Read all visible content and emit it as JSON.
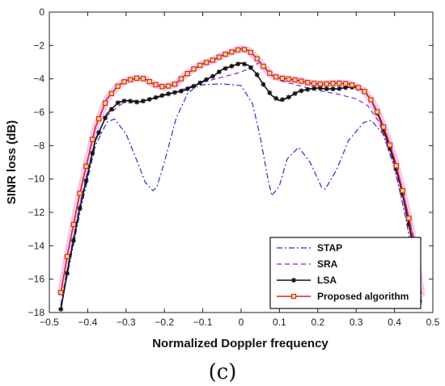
{
  "caption": "(c)",
  "chart_data": {
    "type": "line",
    "xlabel": "Normalized Doppler frequency",
    "ylabel": "SINR loss (dB)",
    "xlim": [
      -0.5,
      0.5
    ],
    "ylim": [
      -18,
      0
    ],
    "xticks": [
      -0.5,
      -0.4,
      -0.3,
      -0.2,
      -0.1,
      0,
      0.1,
      0.2,
      0.3,
      0.4,
      0.5
    ],
    "xtick_labels": [
      "−0.5",
      "−0.4",
      "−0.3",
      "−0.2",
      "−0.1",
      "0",
      "0.1",
      "0.2",
      "0.3",
      "0.4",
      "0.5"
    ],
    "yticks": [
      -18,
      -16,
      -14,
      -12,
      -10,
      -8,
      -6,
      -4,
      -2,
      0
    ],
    "ytick_labels": [
      "−18",
      "−16",
      "−14",
      "−12",
      "−10",
      "−8",
      "−6",
      "−4",
      "−2",
      "0"
    ],
    "grid": false,
    "legend_position": "bottom-right",
    "series": [
      {
        "name": "STAP",
        "color": "#2233cc",
        "style": "dashdot",
        "marker": "none",
        "x": [
          -0.47,
          -0.45,
          -0.42,
          -0.38,
          -0.35,
          -0.33,
          -0.3,
          -0.27,
          -0.25,
          -0.23,
          -0.22,
          -0.2,
          -0.17,
          -0.14,
          -0.12,
          -0.1,
          -0.05,
          0.0,
          0.03,
          0.05,
          0.07,
          0.08,
          0.1,
          0.12,
          0.15,
          0.18,
          0.21,
          0.22,
          0.25,
          0.28,
          0.32,
          0.34,
          0.37,
          0.4,
          0.43,
          0.45,
          0.47
        ],
        "y": [
          -17.6,
          -15.4,
          -12.0,
          -8.0,
          -6.6,
          -6.4,
          -7.3,
          -9.0,
          -10.2,
          -10.7,
          -10.5,
          -9.0,
          -6.4,
          -4.9,
          -4.5,
          -4.35,
          -4.3,
          -4.4,
          -5.5,
          -7.5,
          -10.0,
          -11.0,
          -10.4,
          -8.8,
          -8.1,
          -9.0,
          -10.5,
          -10.6,
          -9.4,
          -7.7,
          -6.6,
          -6.5,
          -7.3,
          -9.3,
          -12.4,
          -15.0,
          -17.5
        ]
      },
      {
        "name": "SRA",
        "color": "#8822cc",
        "style": "dashed",
        "marker": "none",
        "x": [
          -0.47,
          -0.45,
          -0.42,
          -0.38,
          -0.35,
          -0.3,
          -0.25,
          -0.2,
          -0.15,
          -0.1,
          -0.05,
          0.0,
          0.05,
          0.1,
          0.15,
          0.2,
          0.25,
          0.3,
          0.33,
          0.36,
          0.39,
          0.42,
          0.45,
          0.47
        ],
        "y": [
          -17.5,
          -15.0,
          -11.5,
          -7.6,
          -6.2,
          -5.3,
          -5.3,
          -5.0,
          -4.6,
          -4.2,
          -3.9,
          -3.6,
          -3.0,
          -4.1,
          -4.4,
          -4.7,
          -4.9,
          -5.2,
          -5.6,
          -6.6,
          -8.4,
          -10.8,
          -13.5,
          -16.0
        ]
      },
      {
        "name": "LSA",
        "color": "#111111",
        "style": "solid",
        "marker": "star",
        "x": [
          -0.47,
          -0.45,
          -0.42,
          -0.38,
          -0.35,
          -0.32,
          -0.3,
          -0.27,
          -0.25,
          -0.22,
          -0.2,
          -0.17,
          -0.15,
          -0.12,
          -0.1,
          -0.07,
          -0.05,
          -0.02,
          0.0,
          0.02,
          0.04,
          0.06,
          0.08,
          0.1,
          0.12,
          0.15,
          0.18,
          0.2,
          0.22,
          0.25,
          0.28,
          0.3,
          0.32,
          0.34,
          0.36,
          0.38,
          0.4,
          0.42,
          0.44,
          0.46,
          0.47
        ],
        "y": [
          -17.8,
          -15.2,
          -11.7,
          -7.7,
          -6.1,
          -5.4,
          -5.3,
          -5.4,
          -5.3,
          -5.1,
          -4.95,
          -4.8,
          -4.7,
          -4.4,
          -4.15,
          -3.8,
          -3.45,
          -3.2,
          -3.05,
          -3.2,
          -3.7,
          -4.4,
          -5.0,
          -5.3,
          -5.15,
          -4.75,
          -4.6,
          -4.55,
          -4.6,
          -4.6,
          -4.5,
          -4.5,
          -4.7,
          -5.3,
          -6.3,
          -7.6,
          -9.0,
          -10.8,
          -13.0,
          -15.6,
          -17.4
        ]
      },
      {
        "name": "Proposed algorithm",
        "color": "#cc2a1a",
        "style": "solid",
        "marker": "square",
        "x": [
          -0.47,
          -0.45,
          -0.42,
          -0.38,
          -0.35,
          -0.32,
          -0.3,
          -0.27,
          -0.25,
          -0.23,
          -0.2,
          -0.17,
          -0.15,
          -0.12,
          -0.1,
          -0.07,
          -0.05,
          -0.02,
          0.0,
          0.02,
          0.04,
          0.06,
          0.08,
          0.1,
          0.12,
          0.15,
          0.18,
          0.2,
          0.22,
          0.25,
          0.28,
          0.3,
          0.32,
          0.34,
          0.36,
          0.38,
          0.4,
          0.42,
          0.44,
          0.46,
          0.47
        ],
        "y": [
          -16.8,
          -14.2,
          -10.8,
          -6.9,
          -5.2,
          -4.4,
          -4.1,
          -3.95,
          -4.0,
          -4.3,
          -4.5,
          -4.3,
          -3.85,
          -3.35,
          -3.1,
          -2.85,
          -2.6,
          -2.35,
          -2.2,
          -2.3,
          -2.75,
          -3.3,
          -3.8,
          -3.95,
          -4.0,
          -4.1,
          -4.25,
          -4.3,
          -4.3,
          -4.25,
          -4.3,
          -4.45,
          -4.7,
          -5.3,
          -6.2,
          -7.4,
          -8.8,
          -10.6,
          -12.6,
          -15.2,
          -16.9
        ]
      }
    ]
  }
}
